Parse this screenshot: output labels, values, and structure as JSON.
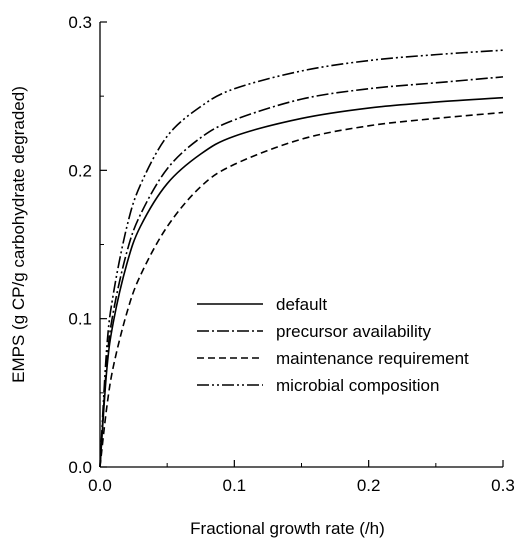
{
  "chart_data": {
    "type": "line",
    "title": "",
    "xlabel": "Fractional growth rate (/h)",
    "ylabel": "EMPS (g CP/g carbohydrate degraded)",
    "xlim": [
      0,
      0.3
    ],
    "ylim": [
      0,
      0.3
    ],
    "x_major_ticks": [
      0.0,
      0.1,
      0.2,
      0.3
    ],
    "y_major_ticks": [
      0.0,
      0.1,
      0.2,
      0.3
    ],
    "x_tick_labels": [
      "0.0",
      "0.1",
      "0.2",
      "0.3"
    ],
    "y_tick_labels": [
      "0.0",
      "0.1",
      "0.2",
      "0.3"
    ],
    "grid": false,
    "legend_position": "lower-right",
    "series": [
      {
        "name": "default",
        "dash": "solid",
        "x": [
          0,
          0.005,
          0.01,
          0.02,
          0.03,
          0.05,
          0.075,
          0.1,
          0.15,
          0.2,
          0.25,
          0.3
        ],
        "y": [
          0,
          0.065,
          0.098,
          0.137,
          0.162,
          0.191,
          0.211,
          0.223,
          0.235,
          0.242,
          0.246,
          0.249
        ]
      },
      {
        "name": "precursor availability",
        "dash": "dash-dot",
        "x": [
          0,
          0.005,
          0.01,
          0.02,
          0.03,
          0.05,
          0.075,
          0.1,
          0.15,
          0.2,
          0.25,
          0.3
        ],
        "y": [
          0,
          0.07,
          0.105,
          0.145,
          0.17,
          0.201,
          0.222,
          0.234,
          0.248,
          0.255,
          0.259,
          0.263
        ]
      },
      {
        "name": "maintenance requirement",
        "dash": "dashed",
        "x": [
          0,
          0.005,
          0.01,
          0.02,
          0.03,
          0.05,
          0.075,
          0.1,
          0.15,
          0.2,
          0.25,
          0.3
        ],
        "y": [
          0,
          0.04,
          0.068,
          0.104,
          0.129,
          0.162,
          0.189,
          0.204,
          0.221,
          0.23,
          0.235,
          0.239
        ]
      },
      {
        "name": "microbial composition",
        "dash": "dash-dot-dot",
        "x": [
          0,
          0.005,
          0.01,
          0.02,
          0.03,
          0.05,
          0.075,
          0.1,
          0.15,
          0.2,
          0.25,
          0.3
        ],
        "y": [
          0,
          0.08,
          0.117,
          0.162,
          0.19,
          0.223,
          0.243,
          0.255,
          0.267,
          0.274,
          0.278,
          0.281
        ]
      }
    ]
  },
  "colors": {
    "line": "#000000",
    "background": "#ffffff"
  }
}
